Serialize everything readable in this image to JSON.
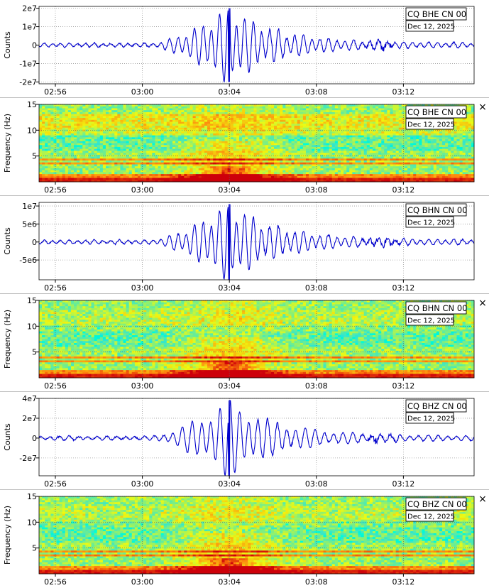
{
  "close_glyph": "×",
  "time_ticks": [
    "02:56",
    "03:00",
    "03:04",
    "03:08",
    "03:12"
  ],
  "colors": {
    "trace": "#0000cc",
    "grid": "#9a9a9a",
    "spectrogram_low": "#00a8ff",
    "spectrogram_mid": "#f2f200",
    "spectrogram_high": "#d40000"
  },
  "chart_data": [
    {
      "type": "line",
      "name": "BHE-waveform",
      "badge": {
        "title": "CQ BHE CN 00",
        "date": "Dec 12, 2025"
      },
      "ylabel": "Counts",
      "ytick_labels": [
        "2e7",
        "1e7",
        "0",
        "-1e7",
        "-2e7"
      ],
      "yticks": [
        20000000,
        10000000,
        0,
        -10000000,
        -20000000
      ],
      "ylim": [
        -21000000,
        21000000
      ],
      "xlim_minutes": [
        -4.75,
        15.25
      ],
      "peak_time_minutes": 4.0,
      "peak_amplitude": 20000000,
      "grid": true
    },
    {
      "type": "heatmap",
      "name": "BHE-spectrogram",
      "badge": {
        "title": "CQ BHE CN 00",
        "date": "Dec 12, 2025"
      },
      "ylabel": "Frequency (Hz)",
      "ytick_labels": [
        "15",
        "10",
        "5"
      ],
      "yticks": [
        15,
        10,
        5
      ],
      "ylim": [
        0,
        15
      ],
      "bands_hz": [
        0.3,
        3.5,
        4.3,
        11.0
      ],
      "grid": true
    },
    {
      "type": "line",
      "name": "BHN-waveform",
      "badge": {
        "title": "CQ BHN CN 00",
        "date": "Dec 12, 2025"
      },
      "ylabel": "Counts",
      "ytick_labels": [
        "1e7",
        "5e6",
        "0",
        "-5e6"
      ],
      "yticks": [
        10000000,
        5000000,
        0,
        -5000000
      ],
      "ylim": [
        -10500000,
        11000000
      ],
      "xlim_minutes": [
        -4.75,
        15.25
      ],
      "peak_time_minutes": 4.0,
      "peak_amplitude": 10500000,
      "grid": true
    },
    {
      "type": "heatmap",
      "name": "BHN-spectrogram",
      "badge": {
        "title": "CQ BHN CN 00",
        "date": "Dec 12, 2025"
      },
      "ylabel": "Frequency (Hz)",
      "ytick_labels": [
        "15",
        "10",
        "5"
      ],
      "yticks": [
        15,
        10,
        5
      ],
      "ylim": [
        0,
        15
      ],
      "bands_hz": [
        0.3,
        3.2,
        4.0,
        5.5
      ],
      "grid": true
    },
    {
      "type": "line",
      "name": "BHZ-waveform",
      "badge": {
        "title": "CQ BHZ CN 00",
        "date": "Dec 12, 2025"
      },
      "ylabel": "Counts",
      "ytick_labels": [
        "4e7",
        "2e7",
        "0",
        "-2e7"
      ],
      "yticks": [
        40000000,
        20000000,
        0,
        -20000000
      ],
      "ylim": [
        -38000000,
        40000000
      ],
      "xlim_minutes": [
        -4.75,
        15.25
      ],
      "peak_time_minutes": 4.0,
      "peak_amplitude": 38000000,
      "grid": true
    },
    {
      "type": "heatmap",
      "name": "BHZ-spectrogram",
      "badge": {
        "title": "CQ BHZ CN 00",
        "date": "Dec 12, 2025"
      },
      "ylabel": "Frequency (Hz)",
      "ytick_labels": [
        "15",
        "10",
        "5"
      ],
      "yticks": [
        15,
        10,
        5
      ],
      "ylim": [
        0,
        15
      ],
      "bands_hz": [
        0.3,
        3.5,
        4.2,
        6.0
      ],
      "grid": true
    }
  ]
}
